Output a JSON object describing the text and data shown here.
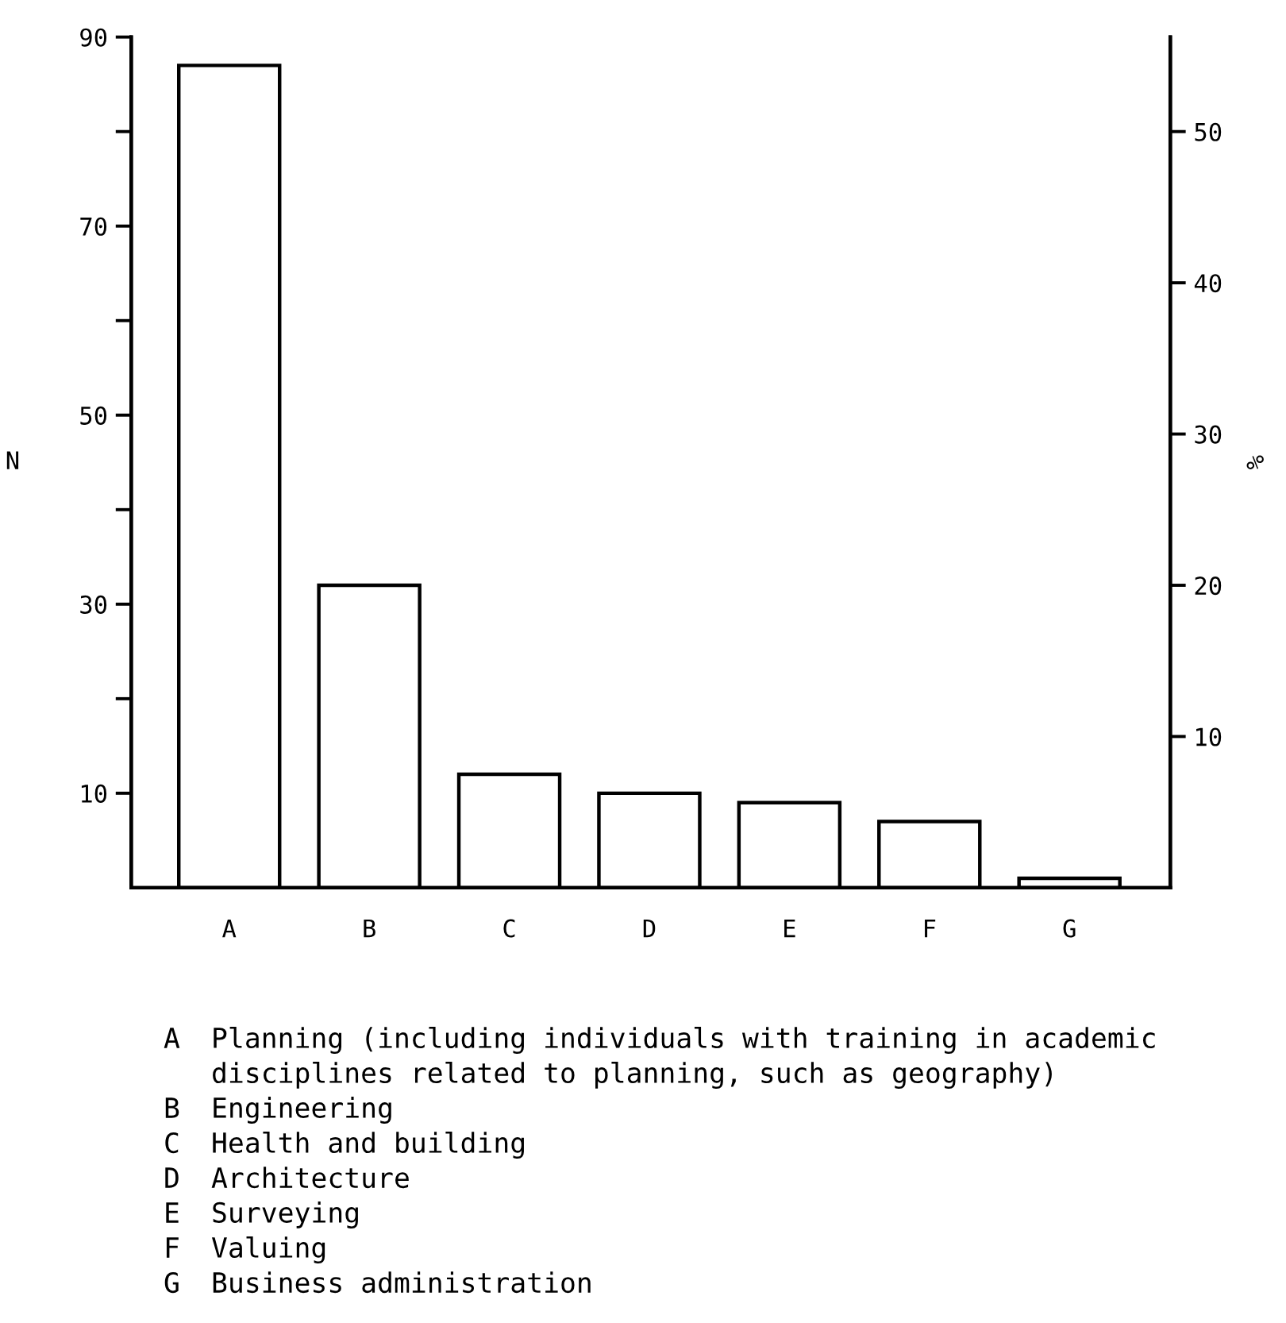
{
  "chart_data": {
    "type": "bar",
    "categories": [
      "A",
      "B",
      "C",
      "D",
      "E",
      "F",
      "G"
    ],
    "values": [
      87,
      32,
      12,
      10,
      9,
      7,
      1
    ],
    "color": "#ffffff",
    "ylabel": "N",
    "y2label": "%",
    "ylim": [
      0,
      90
    ],
    "yticks": [
      {
        "value": 20,
        "label": null
      },
      {
        "value": 40,
        "label": null
      },
      {
        "value": 60,
        "label": null
      },
      {
        "value": 80,
        "label": null
      },
      10,
      30,
      50,
      70,
      90
    ],
    "y2lim": [
      0,
      56.25
    ],
    "y2ticks": [
      10,
      20,
      30,
      40,
      50
    ],
    "grid": false,
    "annotations": [
      "A Planning (including individuals with training in academic\ndisciplines related to planning, such as geography)",
      "B Engineering",
      "C Health and building",
      "D Architecture",
      "E Surveying",
      "F Valuing",
      "G Business administration"
    ]
  }
}
